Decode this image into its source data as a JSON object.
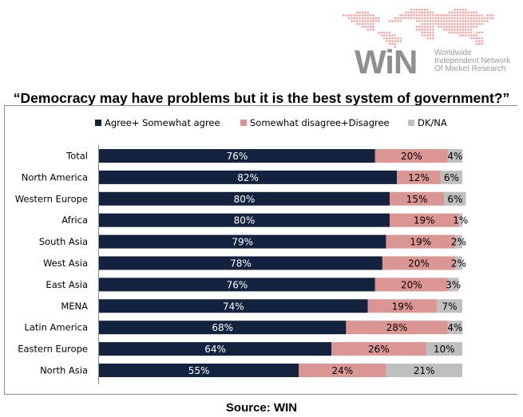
{
  "logo": {
    "brand": "WiN",
    "tagline_lines": [
      "Worldwide",
      "Independent Network",
      "Of Market Research"
    ],
    "map_color": "#f4a6a3",
    "brand_color": "#8f8f8f"
  },
  "chart_data": {
    "type": "bar",
    "orientation": "horizontal",
    "stacked": true,
    "title": "“Democracy may have problems but it is the best system of government?”",
    "xlabel": "",
    "ylabel": "",
    "xlim": [
      0,
      100
    ],
    "grid": false,
    "legend_position": "top",
    "categories": [
      "Total",
      "North America",
      "Western Europe",
      "Africa",
      "South Asia",
      "West Asia",
      "East Asia",
      "MENA",
      "Latin America",
      "Eastern Europe",
      "North Asia"
    ],
    "series": [
      {
        "name": "Agree+ Somewhat agree",
        "color": "#13233f",
        "label_color": "#ffffff",
        "values": [
          76,
          82,
          80,
          80,
          79,
          78,
          76,
          74,
          68,
          64,
          55
        ]
      },
      {
        "name": "Somewhat disagree+Disagree",
        "color": "#db9593",
        "label_color": "#000000",
        "values": [
          20,
          12,
          15,
          19,
          19,
          20,
          20,
          19,
          28,
          26,
          24
        ]
      },
      {
        "name": "DK/NA",
        "color": "#bfbfbf",
        "label_color": "#000000",
        "values": [
          4,
          6,
          6,
          1,
          2,
          2,
          3,
          7,
          4,
          10,
          21
        ]
      }
    ],
    "value_suffix": "%"
  },
  "source": "Source: WIN"
}
